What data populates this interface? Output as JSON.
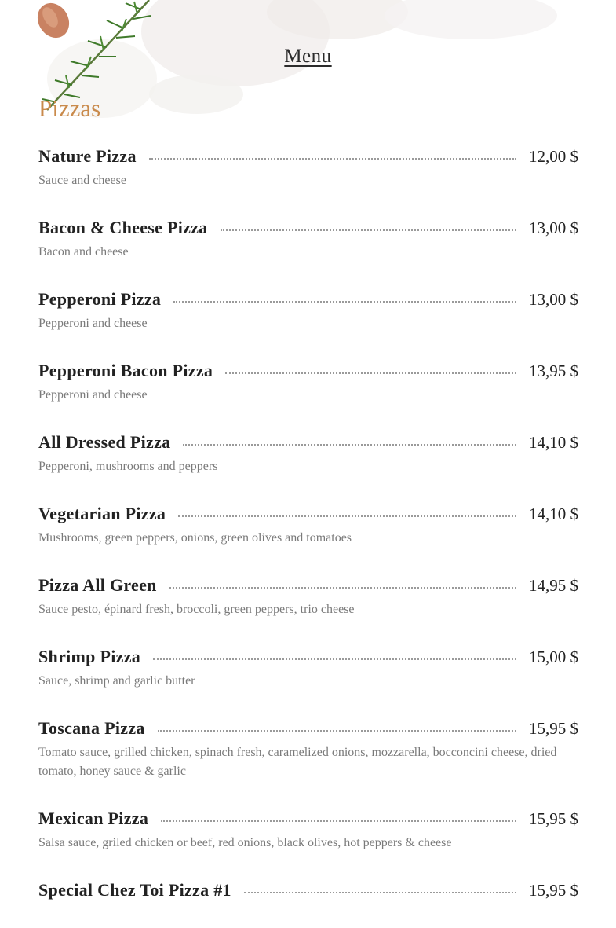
{
  "header": {
    "title": "Menu"
  },
  "section": {
    "title": "Pizzas"
  },
  "colors": {
    "accent": "#c98a4b",
    "text": "#222222",
    "muted": "#7a7a7a"
  },
  "items": [
    {
      "name": "Nature Pizza",
      "price": "12,00 $",
      "desc": "Sauce and cheese"
    },
    {
      "name": "Bacon & Cheese Pizza",
      "price": "13,00 $",
      "desc": "Bacon and cheese"
    },
    {
      "name": "Pepperoni Pizza",
      "price": "13,00 $",
      "desc": "Pepperoni and cheese"
    },
    {
      "name": "Pepperoni Bacon Pizza",
      "price": "13,95 $",
      "desc": "Pepperoni and cheese"
    },
    {
      "name": "All Dressed Pizza",
      "price": "14,10 $",
      "desc": "Pepperoni, mushrooms and peppers"
    },
    {
      "name": "Vegetarian Pizza",
      "price": "14,10 $",
      "desc": "Mushrooms, green peppers, onions, green olives and tomatoes"
    },
    {
      "name": "Pizza All Green",
      "price": "14,95 $",
      "desc": "Sauce pesto, épinard fresh, broccoli, green peppers, trio cheese"
    },
    {
      "name": "Shrimp Pizza",
      "price": "15,00 $",
      "desc": "Sauce, shrimp and garlic butter"
    },
    {
      "name": "Toscana Pizza",
      "price": "15,95 $",
      "desc": "Tomato sauce, grilled chicken, spinach fresh, caramelized onions, mozzarella, bocconcini cheese, dried tomato, honey sauce & garlic"
    },
    {
      "name": "Mexican Pizza",
      "price": "15,95 $",
      "desc": "Salsa sauce, griled chicken or beef, red onions, black olives, hot peppers & cheese"
    },
    {
      "name": "Special Chez Toi Pizza #1",
      "price": "15,95 $",
      "desc": ""
    }
  ]
}
